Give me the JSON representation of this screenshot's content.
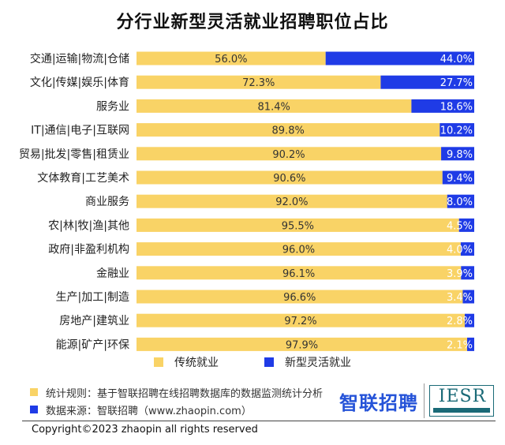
{
  "chart_data": {
    "type": "bar",
    "orientation": "horizontal-stacked-100",
    "title": "分行业新型灵活就业招聘职位占比",
    "categories": [
      "交通|运输|物流|仓储",
      "文化|传媒|娱乐|体育",
      "服务业",
      "IT|通信|电子|互联网",
      "贸易|批发|零售|租赁业",
      "文体教育|工艺美术",
      "商业服务",
      "农|林|牧|渔|其他",
      "政府|非盈利机构",
      "金融业",
      "生产|加工|制造",
      "房地产|建筑业",
      "能源|矿产|环保"
    ],
    "series": [
      {
        "name": "传统就业",
        "color": "#f9d366",
        "values": [
          56.0,
          72.3,
          81.4,
          89.8,
          90.2,
          90.6,
          92.0,
          95.5,
          96.0,
          96.1,
          96.6,
          97.2,
          97.9
        ],
        "labels": [
          "56.0%",
          "72.3%",
          "81.4%",
          "89.8%",
          "90.2%",
          "90.6%",
          "92.0%",
          "95.5%",
          "96.0%",
          "96.1%",
          "96.6%",
          "97.2%",
          "97.9%"
        ]
      },
      {
        "name": "新型灵活就业",
        "color": "#1f3be6",
        "values": [
          44.0,
          27.7,
          18.6,
          10.2,
          9.8,
          9.4,
          8.0,
          4.5,
          4.0,
          3.9,
          3.4,
          2.8,
          2.1
        ],
        "labels": [
          "44.0%",
          "27.7%",
          "18.6%",
          "10.2%",
          "9.8%",
          "9.4%",
          "8.0%",
          "4.5%",
          "4.0%",
          "3.9%",
          "3.4%",
          "2.8%",
          "2.1%"
        ]
      }
    ],
    "xlim": [
      0,
      100
    ],
    "grid": false,
    "legend": "bottom"
  },
  "notes": {
    "rule": "统计规则：基于智联招聘在线招聘数据库的数据监测统计分析",
    "source": "数据来源：智联招聘（www.zhaopin.com）"
  },
  "brand": {
    "zhaopin": "智联招聘",
    "iesr": "IESR"
  },
  "copyright": "Copyright©2023 zhaopin all rights reserved",
  "colors": {
    "traditional": "#f9d366",
    "flexible": "#1f3be6",
    "note_yellow": "#f9d366",
    "note_blue": "#1f3be6"
  }
}
